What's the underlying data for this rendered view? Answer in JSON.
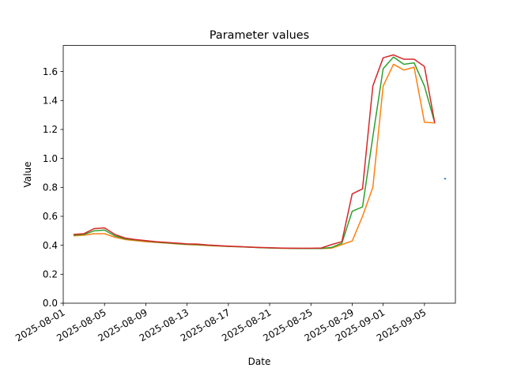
{
  "chart_data": {
    "type": "line",
    "title": "Parameter values",
    "xlabel": "Date",
    "ylabel": "Value",
    "xlim": [
      "2025-08-01",
      "2025-09-08"
    ],
    "ylim": [
      0,
      1.78
    ],
    "x_ticks": [
      "2025-08-01",
      "2025-08-05",
      "2025-08-09",
      "2025-08-13",
      "2025-08-17",
      "2025-08-21",
      "2025-08-25",
      "2025-08-29",
      "2025-09-01",
      "2025-09-05"
    ],
    "y_ticks": [
      "0.0",
      "0.2",
      "0.4",
      "0.6",
      "0.8",
      "1.0",
      "1.2",
      "1.4",
      "1.6"
    ],
    "x": [
      "2025-08-02",
      "2025-08-03",
      "2025-08-04",
      "2025-08-05",
      "2025-08-06",
      "2025-08-07",
      "2025-08-08",
      "2025-08-09",
      "2025-08-10",
      "2025-08-11",
      "2025-08-12",
      "2025-08-13",
      "2025-08-14",
      "2025-08-15",
      "2025-08-16",
      "2025-08-17",
      "2025-08-18",
      "2025-08-19",
      "2025-08-20",
      "2025-08-21",
      "2025-08-22",
      "2025-08-23",
      "2025-08-24",
      "2025-08-25",
      "2025-08-26",
      "2025-08-27",
      "2025-08-28",
      "2025-08-29",
      "2025-08-30",
      "2025-08-31",
      "2025-09-01",
      "2025-09-02",
      "2025-09-03",
      "2025-09-04",
      "2025-09-05",
      "2025-09-06"
    ],
    "series": [
      {
        "color": "#1f77b4",
        "points": [
          [
            "2025-09-07",
            0.86
          ]
        ]
      },
      {
        "color": "#ff7f0e",
        "values": [
          0.465,
          0.47,
          0.48,
          0.48,
          0.455,
          0.44,
          0.432,
          0.425,
          0.42,
          0.415,
          0.41,
          0.405,
          0.402,
          0.398,
          0.395,
          0.392,
          0.39,
          0.387,
          0.384,
          0.382,
          0.38,
          0.379,
          0.378,
          0.378,
          0.378,
          0.38,
          0.405,
          0.43,
          0.6,
          0.8,
          1.5,
          1.65,
          1.61,
          1.63,
          1.25,
          1.245
        ]
      },
      {
        "color": "#2ca02c",
        "values": [
          0.47,
          0.475,
          0.5,
          0.505,
          0.465,
          0.445,
          0.437,
          0.43,
          0.422,
          0.417,
          0.412,
          0.407,
          0.405,
          0.4,
          0.397,
          0.393,
          0.39,
          0.387,
          0.384,
          0.382,
          0.38,
          0.379,
          0.378,
          0.378,
          0.378,
          0.385,
          0.415,
          0.635,
          0.665,
          1.15,
          1.62,
          1.7,
          1.65,
          1.66,
          1.5,
          1.245
        ]
      },
      {
        "color": "#d62728",
        "values": [
          0.475,
          0.48,
          0.515,
          0.52,
          0.475,
          0.45,
          0.44,
          0.432,
          0.425,
          0.42,
          0.415,
          0.41,
          0.408,
          0.402,
          0.398,
          0.394,
          0.391,
          0.388,
          0.385,
          0.383,
          0.381,
          0.38,
          0.38,
          0.38,
          0.381,
          0.405,
          0.425,
          0.755,
          0.79,
          1.5,
          1.695,
          1.715,
          1.685,
          1.685,
          1.635,
          1.245
        ]
      }
    ],
    "grid": false,
    "legend": false
  }
}
